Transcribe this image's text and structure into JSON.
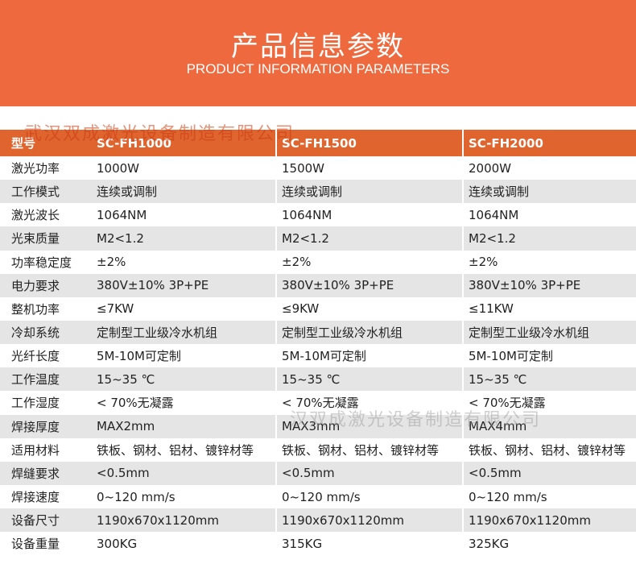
{
  "banner": {
    "title_cn": "产品信息参数",
    "title_en": "PRODUCT INFORMATION PARAMETERS"
  },
  "watermark": {
    "text": "武汉双成激光设备制造有限公司"
  },
  "table": {
    "header": {
      "label": "型号",
      "models": [
        "SC-FH1000",
        "SC-FH1500",
        "SC-FH2000"
      ]
    },
    "rows": [
      {
        "label": "激光功率",
        "values": [
          "1000W",
          "1500W",
          "2000W"
        ]
      },
      {
        "label": "工作模式",
        "values": [
          "连续或调制",
          "连续或调制",
          "连续或调制"
        ]
      },
      {
        "label": "激光波长",
        "values": [
          "1064NM",
          "1064NM",
          "1064NM"
        ]
      },
      {
        "label": "光束质量",
        "values": [
          "M2<1.2",
          "M2<1.2",
          "M2<1.2"
        ]
      },
      {
        "label": "功率稳定度",
        "values": [
          "±2%",
          "±2%",
          "±2%"
        ]
      },
      {
        "label": "电力要求",
        "values": [
          "380V±10%  3P+PE",
          "380V±10%  3P+PE",
          "380V±10%  3P+PE"
        ]
      },
      {
        "label": "整机功率",
        "values": [
          "≤7KW",
          "≤9KW",
          "≤11KW"
        ]
      },
      {
        "label": "冷却系统",
        "values": [
          "定制型工业级冷水机组",
          "定制型工业级冷水机组",
          "定制型工业级冷水机组"
        ]
      },
      {
        "label": "光纤长度",
        "values": [
          "5M-10M可定制",
          "5M-10M可定制",
          "5M-10M可定制"
        ]
      },
      {
        "label": "工作温度",
        "values": [
          "15~35 ℃",
          "15~35 ℃",
          "15~35 ℃"
        ]
      },
      {
        "label": "工作湿度",
        "values": [
          "< 70%无凝露",
          "< 70%无凝露",
          "< 70%无凝露"
        ]
      },
      {
        "label": "焊接厚度",
        "values": [
          "MAX2mm",
          "MAX3mm",
          "MAX4mm"
        ]
      },
      {
        "label": "适用材料",
        "values": [
          "铁板、钢材、铝材、镀锌材等",
          "铁板、钢材、铝材、镀锌材等",
          "铁板、钢材、铝材、镀锌材等"
        ]
      },
      {
        "label": "焊缝要求",
        "values": [
          "<0.5mm",
          "<0.5mm",
          "<0.5mm"
        ]
      },
      {
        "label": "焊接速度",
        "values": [
          "0~120 mm/s",
          "0~120 mm/s",
          "0~120 mm/s"
        ]
      },
      {
        "label": "设备尺寸",
        "values": [
          "1190x670x1120mm",
          "1190x670x1120mm",
          "1190x670x1120mm"
        ]
      },
      {
        "label": "设备重量",
        "values": [
          "300KG",
          "315KG",
          "325KG"
        ]
      }
    ]
  }
}
